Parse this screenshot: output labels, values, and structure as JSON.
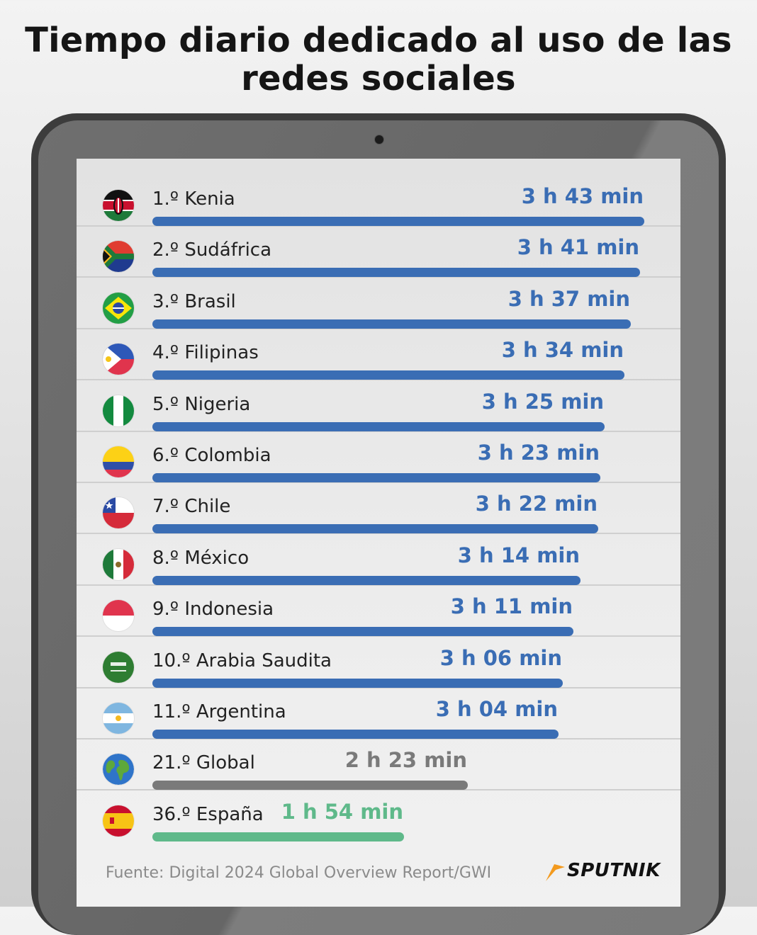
{
  "title": "Tiempo diario dedicado al uso de las redes sociales",
  "source": "Fuente: Digital 2024 Global Overview Report/GWI",
  "brand": "SPUTNIK",
  "colors": {
    "country_bar": "#3a6db4",
    "global_bar": "#7a7a7a",
    "spain_bar": "#5fb98a",
    "country_text": "#3a6db4",
    "global_text": "#7a7a7a",
    "spain_text": "#5fb98a",
    "brand_accent": "#f39a1e"
  },
  "chart_data": {
    "type": "bar",
    "orientation": "horizontal",
    "title": "Tiempo diario dedicado al uso de las redes sociales",
    "value_unit": "min",
    "categories": [
      "1.º Kenia",
      "2.º Sudáfrica",
      "3.º Brasil",
      "4.º Filipinas",
      "5.º Nigeria",
      "6.º Colombia",
      "7.º Chile",
      "8.º México",
      "9.º Indonesia",
      "10.º Arabia Saudita",
      "11.º Argentina",
      "21.º Global",
      "36.º España"
    ],
    "values": [
      223,
      221,
      217,
      214,
      205,
      203,
      202,
      194,
      191,
      186,
      184,
      143,
      114
    ],
    "value_labels": [
      "3 h 43 min",
      "3 h 41 min",
      "3 h 37 min",
      "3 h 34 min",
      "3 h 25 min",
      "3 h 23 min",
      "3 h 22 min",
      "3 h 14 min",
      "3 h 11 min",
      "3 h 06 min",
      "3 h 04 min",
      "2 h 23 min",
      "1 h 54 min"
    ],
    "groups": [
      "country",
      "country",
      "country",
      "country",
      "country",
      "country",
      "country",
      "country",
      "country",
      "country",
      "country",
      "global",
      "spain"
    ],
    "flags": [
      "kenya-flag-icon",
      "south-africa-flag-icon",
      "brazil-flag-icon",
      "philippines-flag-icon",
      "nigeria-flag-icon",
      "colombia-flag-icon",
      "chile-flag-icon",
      "mexico-flag-icon",
      "indonesia-flag-icon",
      "saudi-arabia-flag-icon",
      "argentina-flag-icon",
      "globe-icon",
      "spain-flag-icon"
    ],
    "xlim": [
      0,
      223
    ],
    "grid": false,
    "legend": "none"
  }
}
